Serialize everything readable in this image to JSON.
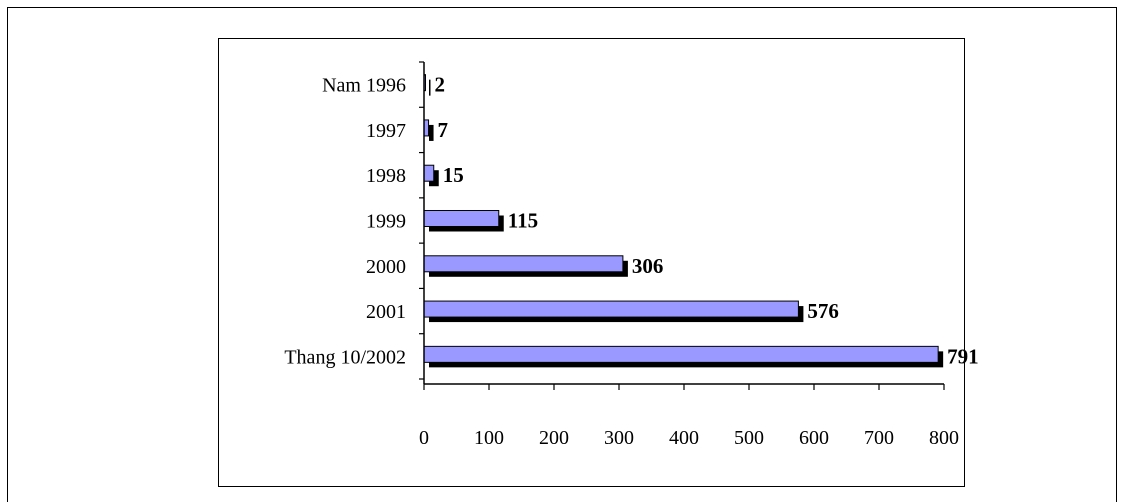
{
  "chart_data": {
    "type": "bar",
    "orientation": "horizontal",
    "categories": [
      "Nam 1996",
      "1997",
      "1998",
      "1999",
      "2000",
      "2001",
      "Thang 10/2002"
    ],
    "values": [
      2,
      7,
      15,
      115,
      306,
      576,
      791
    ],
    "data_labels": [
      "2",
      "7",
      "15",
      "115",
      "306",
      "576",
      "791"
    ],
    "xlim": [
      0,
      800
    ],
    "x_ticks": [
      "0",
      "100",
      "200",
      "300",
      "400",
      "500",
      "600",
      "700",
      "800"
    ],
    "grid": false,
    "legend": "none",
    "title": "",
    "xlabel": "",
    "ylabel": "",
    "colors": {
      "bar_fill": "#9999ff",
      "bar_shadow": "#000000",
      "axis": "#000000"
    }
  }
}
